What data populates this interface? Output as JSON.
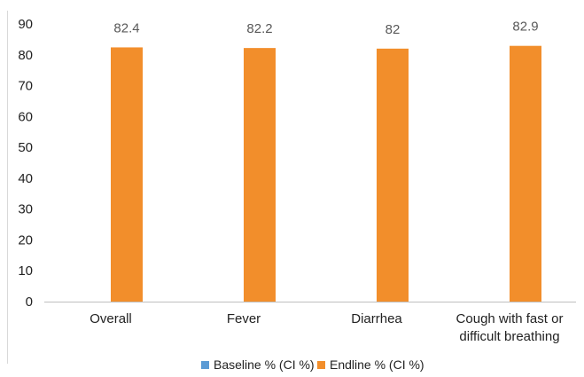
{
  "chart_data": {
    "type": "bar",
    "categories": [
      "Overall",
      "Fever",
      "Diarrhea",
      "Cough with fast or difficult breathing"
    ],
    "category_label_lines": [
      [
        "Overall"
      ],
      [
        "Fever"
      ],
      [
        "Diarrhea"
      ],
      [
        "Cough with fast or",
        "difficult breathing"
      ]
    ],
    "series": [
      {
        "name": "Baseline % (CI %)",
        "color": "#5B9BD5",
        "values": [
          0,
          0,
          0,
          0
        ]
      },
      {
        "name": "Endline % (CI %)",
        "color": "#F28E2B",
        "values": [
          82.4,
          82.2,
          82,
          82.9
        ],
        "labels": [
          "82.4",
          "82.2",
          "82",
          "82.9"
        ]
      }
    ],
    "ylim": [
      0,
      90
    ],
    "yticks": [
      0,
      10,
      20,
      30,
      40,
      50,
      60,
      70,
      80,
      90
    ],
    "grid": false,
    "legend_position": "bottom",
    "title": "",
    "xlabel": "",
    "ylabel": ""
  }
}
